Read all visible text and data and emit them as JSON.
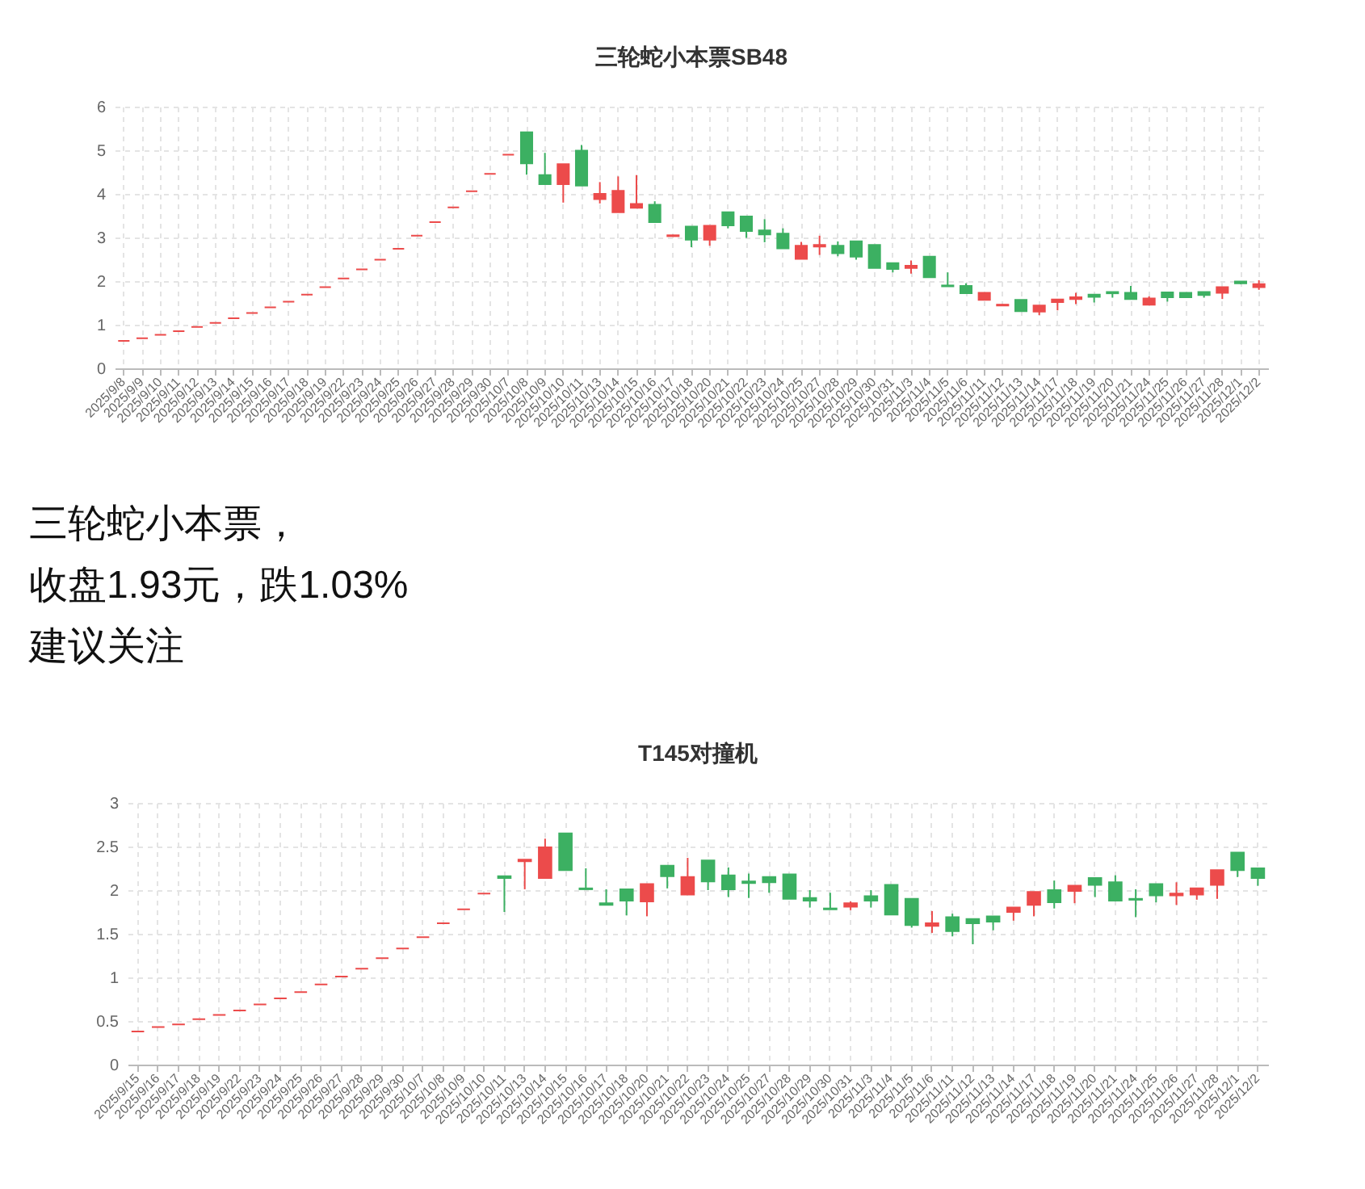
{
  "chart_data": [
    {
      "type": "candlestick",
      "title": "三轮蛇小本票SB48",
      "categories": [
        "2025/9/8",
        "2025/9/9",
        "2025/9/10",
        "2025/9/11",
        "2025/9/12",
        "2025/9/13",
        "2025/9/14",
        "2025/9/15",
        "2025/9/16",
        "2025/9/17",
        "2025/9/18",
        "2025/9/19",
        "2025/9/22",
        "2025/9/23",
        "2025/9/24",
        "2025/9/25",
        "2025/9/26",
        "2025/9/27",
        "2025/9/28",
        "2025/9/29",
        "2025/9/30",
        "2025/10/7",
        "2025/10/8",
        "2025/10/9",
        "2025/10/10",
        "2025/10/11",
        "2025/10/13",
        "2025/10/14",
        "2025/10/15",
        "2025/10/16",
        "2025/10/17",
        "2025/10/18",
        "2025/10/20",
        "2025/10/21",
        "2025/10/22",
        "2025/10/23",
        "2025/10/24",
        "2025/10/25",
        "2025/10/27",
        "2025/10/28",
        "2025/10/29",
        "2025/10/30",
        "2025/10/31",
        "2025/11/3",
        "2025/11/4",
        "2025/11/5",
        "2025/11/6",
        "2025/11/11",
        "2025/11/12",
        "2025/11/13",
        "2025/11/14",
        "2025/11/17",
        "2025/11/18",
        "2025/11/19",
        "2025/11/20",
        "2025/11/21",
        "2025/11/24",
        "2025/11/25",
        "2025/11/26",
        "2025/11/27",
        "2025/11/28",
        "2025/12/1",
        "2025/12/2"
      ],
      "ohlc": [
        [
          0.63,
          0.63,
          0.63,
          0.63
        ],
        [
          0.69,
          0.69,
          0.69,
          0.69
        ],
        [
          0.77,
          0.77,
          0.77,
          0.77
        ],
        [
          0.85,
          0.85,
          0.85,
          0.85
        ],
        [
          0.95,
          0.95,
          0.95,
          0.95
        ],
        [
          1.04,
          1.04,
          1.04,
          1.04
        ],
        [
          1.15,
          1.15,
          1.15,
          1.15
        ],
        [
          1.27,
          1.27,
          1.27,
          1.27
        ],
        [
          1.4,
          1.4,
          1.4,
          1.4
        ],
        [
          1.53,
          1.53,
          1.53,
          1.53
        ],
        [
          1.69,
          1.69,
          1.69,
          1.69
        ],
        [
          1.86,
          1.86,
          1.86,
          1.86
        ],
        [
          2.06,
          2.06,
          2.06,
          2.06
        ],
        [
          2.27,
          2.27,
          2.27,
          2.27
        ],
        [
          2.49,
          2.49,
          2.49,
          2.49
        ],
        [
          2.74,
          2.74,
          2.74,
          2.74
        ],
        [
          3.04,
          3.04,
          3.04,
          3.04
        ],
        [
          3.35,
          3.35,
          3.35,
          3.35
        ],
        [
          3.69,
          3.69,
          3.69,
          3.69
        ],
        [
          4.06,
          4.06,
          4.06,
          4.06
        ],
        [
          4.46,
          4.46,
          4.46,
          4.46
        ],
        [
          4.9,
          4.9,
          4.9,
          4.9
        ],
        [
          5.41,
          5.41,
          4.44,
          4.7
        ],
        [
          4.43,
          4.94,
          4.22,
          4.22
        ],
        [
          4.22,
          4.68,
          3.8,
          4.68
        ],
        [
          4.99,
          5.12,
          4.19,
          4.19
        ],
        [
          3.88,
          4.27,
          3.78,
          4.0
        ],
        [
          3.58,
          4.4,
          3.58,
          4.07
        ],
        [
          3.68,
          4.43,
          3.68,
          3.77
        ],
        [
          3.75,
          3.83,
          3.35,
          3.35
        ],
        [
          3.03,
          3.06,
          3.03,
          3.05
        ],
        [
          3.25,
          3.25,
          2.78,
          2.95
        ],
        [
          2.95,
          3.27,
          2.81,
          3.27
        ],
        [
          3.58,
          3.58,
          3.21,
          3.28
        ],
        [
          3.48,
          3.48,
          2.99,
          3.15
        ],
        [
          3.16,
          3.42,
          2.89,
          3.07
        ],
        [
          3.09,
          3.21,
          2.75,
          2.75
        ],
        [
          2.51,
          2.9,
          2.51,
          2.81
        ],
        [
          2.79,
          3.04,
          2.6,
          2.83
        ],
        [
          2.81,
          2.91,
          2.57,
          2.64
        ],
        [
          2.91,
          2.91,
          2.49,
          2.56
        ],
        [
          2.83,
          2.83,
          2.3,
          2.3
        ],
        [
          2.41,
          2.41,
          2.2,
          2.28
        ],
        [
          2.3,
          2.47,
          2.17,
          2.35
        ],
        [
          2.56,
          2.56,
          2.09,
          2.09
        ],
        [
          1.9,
          2.2,
          1.88,
          1.88
        ],
        [
          1.89,
          1.95,
          1.72,
          1.72
        ],
        [
          1.57,
          1.73,
          1.57,
          1.73
        ],
        [
          1.44,
          1.47,
          1.44,
          1.46
        ],
        [
          1.57,
          1.57,
          1.31,
          1.31
        ],
        [
          1.3,
          1.44,
          1.22,
          1.44
        ],
        [
          1.52,
          1.58,
          1.33,
          1.58
        ],
        [
          1.59,
          1.73,
          1.47,
          1.63
        ],
        [
          1.69,
          1.69,
          1.51,
          1.64
        ],
        [
          1.75,
          1.75,
          1.62,
          1.72
        ],
        [
          1.73,
          1.89,
          1.59,
          1.59
        ],
        [
          1.46,
          1.65,
          1.46,
          1.6
        ],
        [
          1.74,
          1.74,
          1.53,
          1.63
        ],
        [
          1.73,
          1.73,
          1.63,
          1.63
        ],
        [
          1.75,
          1.75,
          1.62,
          1.68
        ],
        [
          1.73,
          1.86,
          1.59,
          1.86
        ],
        [
          1.99,
          2.0,
          1.93,
          1.95
        ],
        [
          1.86,
          2.02,
          1.8,
          1.93
        ]
      ],
      "colors": [
        "#ec4b4b",
        "#ec4b4b",
        "#ec4b4b",
        "#ec4b4b",
        "#ec4b4b",
        "#ec4b4b",
        "#ec4b4b",
        "#ec4b4b",
        "#ec4b4b",
        "#ec4b4b",
        "#ec4b4b",
        "#ec4b4b",
        "#ec4b4b",
        "#ec4b4b",
        "#ec4b4b",
        "#ec4b4b",
        "#ec4b4b",
        "#ec4b4b",
        "#ec4b4b",
        "#ec4b4b",
        "#ec4b4b",
        "#ec4b4b",
        "#3cb062",
        "#3cb062",
        "#ec4b4b",
        "#3cb062",
        "#ec4b4b",
        "#ec4b4b",
        "#ec4b4b",
        "#3cb062",
        "#ec4b4b",
        "#3cb062",
        "#ec4b4b",
        "#3cb062",
        "#3cb062",
        "#3cb062",
        "#3cb062",
        "#ec4b4b",
        "#ec4b4b",
        "#3cb062",
        "#3cb062",
        "#3cb062",
        "#3cb062",
        "#ec4b4b",
        "#3cb062",
        "#3cb062",
        "#3cb062",
        "#ec4b4b",
        "#ec4b4b",
        "#3cb062",
        "#ec4b4b",
        "#ec4b4b",
        "#ec4b4b",
        "#3cb062",
        "#3cb062",
        "#3cb062",
        "#ec4b4b",
        "#3cb062",
        "#3cb062",
        "#3cb062",
        "#ec4b4b",
        "#3cb062",
        "#ec4b4b"
      ],
      "ylim": [
        0,
        6
      ],
      "yticks": [
        0,
        1,
        2,
        3,
        4,
        5,
        6
      ],
      "grid": true
    },
    {
      "type": "other",
      "annotations": [
        "三轮蛇小本票，",
        "收盘1.93元，跌1.03%",
        "建议关注"
      ]
    },
    {
      "type": "candlestick",
      "title": "T145对撞机",
      "categories": [
        "2025/9/15",
        "2025/9/16",
        "2025/9/17",
        "2025/9/18",
        "2025/9/19",
        "2025/9/22",
        "2025/9/23",
        "2025/9/24",
        "2025/9/25",
        "2025/9/26",
        "2025/9/27",
        "2025/9/28",
        "2025/9/29",
        "2025/9/30",
        "2025/10/7",
        "2025/10/8",
        "2025/10/9",
        "2025/10/10",
        "2025/10/11",
        "2025/10/13",
        "2025/10/14",
        "2025/10/15",
        "2025/10/16",
        "2025/10/17",
        "2025/10/18",
        "2025/10/20",
        "2025/10/21",
        "2025/10/22",
        "2025/10/23",
        "2025/10/24",
        "2025/10/25",
        "2025/10/27",
        "2025/10/28",
        "2025/10/29",
        "2025/10/30",
        "2025/10/31",
        "2025/11/3",
        "2025/11/4",
        "2025/11/5",
        "2025/11/6",
        "2025/11/11",
        "2025/11/12",
        "2025/11/13",
        "2025/11/14",
        "2025/11/17",
        "2025/11/18",
        "2025/11/19",
        "2025/11/20",
        "2025/11/21",
        "2025/11/24",
        "2025/11/25",
        "2025/11/26",
        "2025/11/27",
        "2025/11/28",
        "2025/12/1",
        "2025/12/2"
      ],
      "ohlc": [
        [
          0.38,
          0.38,
          0.38,
          0.38
        ],
        [
          0.43,
          0.43,
          0.43,
          0.43
        ],
        [
          0.46,
          0.46,
          0.46,
          0.46
        ],
        [
          0.52,
          0.52,
          0.52,
          0.52
        ],
        [
          0.57,
          0.57,
          0.57,
          0.57
        ],
        [
          0.62,
          0.62,
          0.62,
          0.62
        ],
        [
          0.69,
          0.69,
          0.69,
          0.69
        ],
        [
          0.76,
          0.76,
          0.76,
          0.76
        ],
        [
          0.83,
          0.83,
          0.83,
          0.83
        ],
        [
          0.92,
          0.92,
          0.92,
          0.92
        ],
        [
          1.01,
          1.01,
          1.01,
          1.01
        ],
        [
          1.1,
          1.1,
          1.1,
          1.1
        ],
        [
          1.22,
          1.22,
          1.22,
          1.22
        ],
        [
          1.33,
          1.33,
          1.33,
          1.33
        ],
        [
          1.46,
          1.46,
          1.46,
          1.46
        ],
        [
          1.62,
          1.62,
          1.62,
          1.62
        ],
        [
          1.78,
          1.78,
          1.78,
          1.78
        ],
        [
          1.96,
          1.96,
          1.96,
          1.96
        ],
        [
          2.16,
          2.16,
          1.75,
          2.14
        ],
        [
          2.33,
          2.35,
          2.01,
          2.35
        ],
        [
          2.14,
          2.59,
          2.14,
          2.49
        ],
        [
          2.65,
          2.65,
          2.23,
          2.23
        ],
        [
          2.02,
          2.25,
          2.01,
          2.01
        ],
        [
          1.85,
          2.01,
          1.83,
          1.83
        ],
        [
          2.01,
          2.01,
          1.71,
          1.88
        ],
        [
          1.87,
          2.07,
          1.7,
          2.07
        ],
        [
          2.28,
          2.28,
          2.02,
          2.16
        ],
        [
          1.95,
          2.37,
          1.95,
          2.15
        ],
        [
          2.34,
          2.34,
          2.0,
          2.1
        ],
        [
          2.17,
          2.26,
          1.92,
          2.01
        ],
        [
          2.1,
          2.19,
          1.91,
          2.08
        ],
        [
          2.15,
          2.15,
          1.97,
          2.09
        ],
        [
          2.18,
          2.18,
          1.9,
          1.9
        ],
        [
          1.91,
          2.0,
          1.8,
          1.88
        ],
        [
          1.79,
          1.97,
          1.78,
          1.78
        ],
        [
          1.81,
          1.87,
          1.77,
          1.85
        ],
        [
          1.93,
          2.0,
          1.8,
          1.88
        ],
        [
          2.06,
          2.06,
          1.72,
          1.72
        ],
        [
          1.9,
          1.9,
          1.57,
          1.6
        ],
        [
          1.59,
          1.76,
          1.51,
          1.62
        ],
        [
          1.69,
          1.73,
          1.47,
          1.53
        ],
        [
          1.67,
          1.67,
          1.38,
          1.62
        ],
        [
          1.7,
          1.7,
          1.54,
          1.64
        ],
        [
          1.75,
          1.8,
          1.65,
          1.8
        ],
        [
          1.83,
          1.98,
          1.7,
          1.98
        ],
        [
          2.0,
          2.11,
          1.79,
          1.86
        ],
        [
          1.99,
          2.05,
          1.85,
          2.05
        ],
        [
          2.14,
          2.14,
          1.92,
          2.06
        ],
        [
          2.09,
          2.17,
          1.88,
          1.88
        ],
        [
          1.9,
          2.01,
          1.69,
          1.89
        ],
        [
          2.07,
          2.07,
          1.86,
          1.94
        ],
        [
          1.94,
          2.09,
          1.83,
          1.96
        ],
        [
          1.95,
          2.02,
          1.89,
          2.02
        ],
        [
          2.06,
          2.23,
          1.9,
          2.23
        ],
        [
          2.43,
          2.43,
          2.15,
          2.23
        ],
        [
          2.25,
          2.25,
          2.05,
          2.14
        ]
      ],
      "colors": [
        "#ec4b4b",
        "#ec4b4b",
        "#ec4b4b",
        "#ec4b4b",
        "#ec4b4b",
        "#ec4b4b",
        "#ec4b4b",
        "#ec4b4b",
        "#ec4b4b",
        "#ec4b4b",
        "#ec4b4b",
        "#ec4b4b",
        "#ec4b4b",
        "#ec4b4b",
        "#ec4b4b",
        "#ec4b4b",
        "#ec4b4b",
        "#ec4b4b",
        "#3cb062",
        "#ec4b4b",
        "#ec4b4b",
        "#3cb062",
        "#3cb062",
        "#3cb062",
        "#3cb062",
        "#ec4b4b",
        "#3cb062",
        "#ec4b4b",
        "#3cb062",
        "#3cb062",
        "#3cb062",
        "#3cb062",
        "#3cb062",
        "#3cb062",
        "#3cb062",
        "#ec4b4b",
        "#3cb062",
        "#3cb062",
        "#3cb062",
        "#ec4b4b",
        "#3cb062",
        "#3cb062",
        "#3cb062",
        "#ec4b4b",
        "#ec4b4b",
        "#3cb062",
        "#ec4b4b",
        "#3cb062",
        "#3cb062",
        "#3cb062",
        "#3cb062",
        "#ec4b4b",
        "#ec4b4b",
        "#ec4b4b",
        "#3cb062",
        "#3cb062"
      ],
      "ylim": [
        0,
        3
      ],
      "yticks": [
        0,
        0.5,
        1,
        1.5,
        2,
        2.5,
        3
      ],
      "grid": true
    }
  ]
}
